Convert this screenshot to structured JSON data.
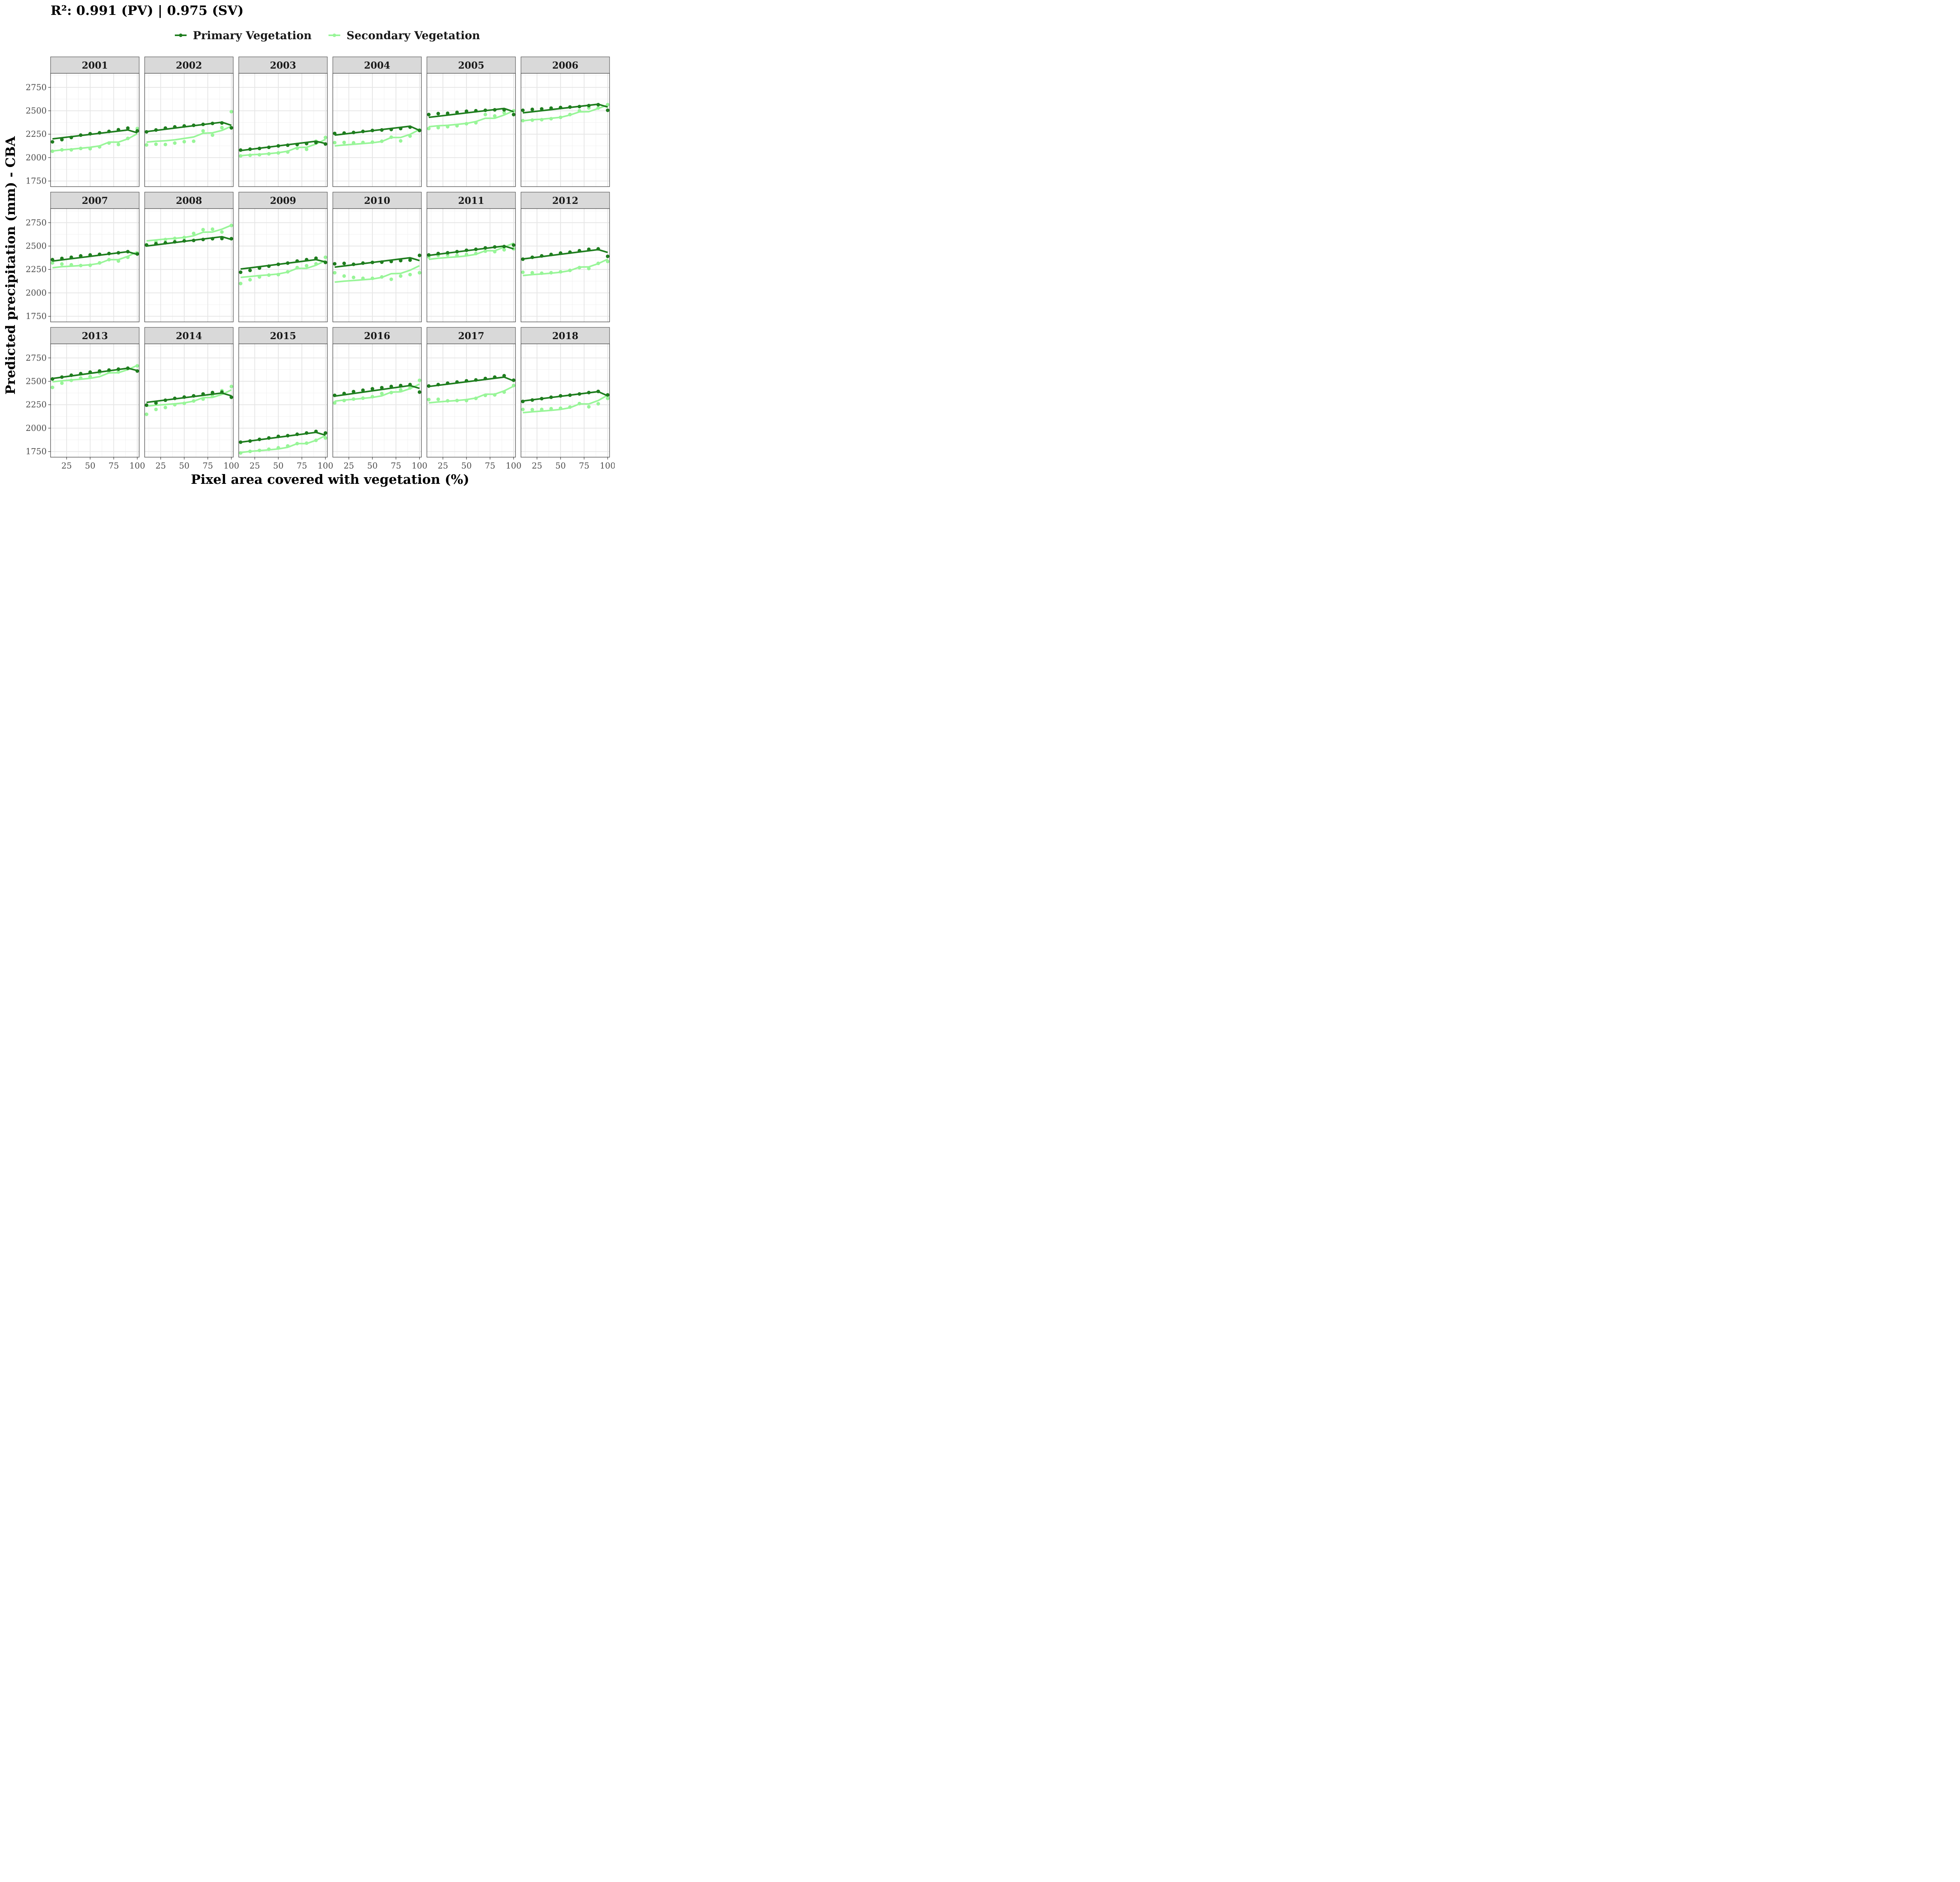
{
  "chart_data": {
    "type": "line",
    "title": "R²: 0.991 (PV) | 0.975 (SV)",
    "xlabel": "Pixel area covered with vegetation (%)",
    "ylabel": "Predicted precipitation (mm) - CBA",
    "xlim": [
      8,
      102
    ],
    "ylim": [
      1690,
      2900
    ],
    "xticks": [
      25,
      50,
      75,
      100
    ],
    "yticks": [
      1750,
      2000,
      2250,
      2500,
      2750
    ],
    "grid": true,
    "facet_layout": {
      "rows": 3,
      "cols": 6
    },
    "legend_placement": "top",
    "x": [
      10,
      20,
      30,
      40,
      50,
      60,
      70,
      80,
      90,
      100
    ],
    "series": [
      {
        "name": "Primary Vegetation",
        "key": "pv",
        "color": "#1e7d1e"
      },
      {
        "name": "Secondary Vegetation",
        "key": "sv",
        "color": "#98f598"
      }
    ],
    "panels": [
      {
        "label": "2001",
        "pv": {
          "points": [
            2168,
            2192,
            2215,
            2240,
            2255,
            2265,
            2280,
            2298,
            2315,
            2285
          ],
          "fit_start": 2200,
          "fit_peak": 2295,
          "fit_end": 2265
        },
        "sv": {
          "points": [
            2068,
            2083,
            2083,
            2098,
            2095,
            2115,
            2155,
            2140,
            2205,
            2310
          ],
          "fit": [
            2070,
            2082,
            2090,
            2100,
            2110,
            2125,
            2165,
            2165,
            2200,
            2255
          ]
        }
      },
      {
        "label": "2002",
        "pv": {
          "points": [
            2275,
            2295,
            2315,
            2328,
            2338,
            2345,
            2355,
            2365,
            2370,
            2318
          ],
          "fit_start": 2278,
          "fit_peak": 2378,
          "fit_end": 2345
        },
        "sv": {
          "points": [
            2135,
            2143,
            2140,
            2155,
            2170,
            2175,
            2285,
            2240,
            2320,
            2490
          ],
          "fit": [
            2165,
            2175,
            2180,
            2190,
            2205,
            2220,
            2260,
            2265,
            2290,
            2335
          ]
        }
      },
      {
        "label": "2003",
        "pv": {
          "points": [
            2080,
            2090,
            2098,
            2110,
            2125,
            2132,
            2140,
            2150,
            2160,
            2145
          ],
          "fit_start": 2075,
          "fit_peak": 2175,
          "fit_end": 2150
        },
        "sv": {
          "points": [
            2018,
            2025,
            2030,
            2040,
            2050,
            2060,
            2100,
            2088,
            2175,
            2215
          ],
          "fit": [
            2020,
            2030,
            2035,
            2042,
            2052,
            2068,
            2108,
            2110,
            2145,
            2195
          ]
        }
      },
      {
        "label": "2004",
        "pv": {
          "points": [
            2258,
            2262,
            2268,
            2280,
            2290,
            2295,
            2300,
            2310,
            2325,
            2290
          ],
          "fit_start": 2240,
          "fit_peak": 2335,
          "fit_end": 2290
        },
        "sv": {
          "points": [
            2160,
            2162,
            2158,
            2162,
            2165,
            2175,
            2218,
            2178,
            2230,
            2295
          ],
          "fit": [
            2125,
            2135,
            2142,
            2150,
            2158,
            2172,
            2215,
            2215,
            2248,
            2300
          ]
        }
      },
      {
        "label": "2005",
        "pv": {
          "points": [
            2460,
            2470,
            2473,
            2483,
            2495,
            2500,
            2505,
            2510,
            2510,
            2460
          ],
          "fit_start": 2430,
          "fit_peak": 2525,
          "fit_end": 2490
        },
        "sv": {
          "points": [
            2310,
            2320,
            2330,
            2340,
            2362,
            2372,
            2460,
            2445,
            2480,
            2500
          ],
          "fit": [
            2330,
            2340,
            2345,
            2355,
            2365,
            2385,
            2420,
            2420,
            2455,
            2500
          ]
        }
      },
      {
        "label": "2006",
        "pv": {
          "points": [
            2505,
            2515,
            2520,
            2528,
            2535,
            2540,
            2545,
            2555,
            2565,
            2505
          ],
          "fit_start": 2478,
          "fit_peak": 2570,
          "fit_end": 2540
        },
        "sv": {
          "points": [
            2395,
            2400,
            2405,
            2415,
            2430,
            2460,
            2500,
            2530,
            2530,
            2565
          ],
          "fit": [
            2392,
            2405,
            2410,
            2420,
            2430,
            2455,
            2488,
            2490,
            2525,
            2560
          ]
        }
      },
      {
        "label": "2007",
        "pv": {
          "points": [
            2355,
            2368,
            2380,
            2395,
            2405,
            2412,
            2420,
            2428,
            2440,
            2415
          ],
          "fit_start": 2340,
          "fit_peak": 2440,
          "fit_end": 2410
        },
        "sv": {
          "points": [
            2320,
            2308,
            2300,
            2292,
            2295,
            2320,
            2355,
            2340,
            2380,
            2425
          ],
          "fit": [
            2268,
            2280,
            2285,
            2292,
            2300,
            2315,
            2355,
            2355,
            2390,
            2440
          ]
        }
      },
      {
        "label": "2008",
        "pv": {
          "points": [
            2510,
            2525,
            2535,
            2545,
            2555,
            2560,
            2570,
            2578,
            2580,
            2578
          ],
          "fit_start": 2500,
          "fit_peak": 2600,
          "fit_end": 2570
        },
        "sv": {
          "points": [
            2515,
            2545,
            2570,
            2582,
            2592,
            2635,
            2675,
            2680,
            2650,
            2720
          ],
          "fit": [
            2555,
            2565,
            2575,
            2582,
            2592,
            2610,
            2648,
            2650,
            2680,
            2722
          ]
        }
      },
      {
        "label": "2009",
        "pv": {
          "points": [
            2220,
            2240,
            2265,
            2285,
            2305,
            2318,
            2340,
            2355,
            2370,
            2325
          ],
          "fit_start": 2255,
          "fit_peak": 2355,
          "fit_end": 2330
        },
        "sv": {
          "points": [
            2100,
            2140,
            2170,
            2190,
            2195,
            2225,
            2270,
            2290,
            2310,
            2380
          ],
          "fit": [
            2165,
            2175,
            2185,
            2192,
            2202,
            2222,
            2262,
            2262,
            2295,
            2345
          ]
        }
      },
      {
        "label": "2010",
        "pv": {
          "points": [
            2310,
            2315,
            2305,
            2318,
            2325,
            2328,
            2335,
            2345,
            2350,
            2400
          ],
          "fit_start": 2275,
          "fit_peak": 2375,
          "fit_end": 2345
        },
        "sv": {
          "points": [
            2215,
            2180,
            2165,
            2155,
            2155,
            2170,
            2145,
            2180,
            2195,
            2215
          ],
          "fit": [
            2115,
            2125,
            2132,
            2140,
            2148,
            2165,
            2205,
            2208,
            2242,
            2290
          ]
        }
      },
      {
        "label": "2011",
        "pv": {
          "points": [
            2405,
            2420,
            2428,
            2440,
            2455,
            2465,
            2480,
            2490,
            2495,
            2510
          ],
          "fit_start": 2400,
          "fit_peak": 2500,
          "fit_end": 2470
        },
        "sv": {
          "points": [
            2385,
            2400,
            2405,
            2400,
            2410,
            2420,
            2445,
            2440,
            2460,
            2470
          ],
          "fit": [
            2358,
            2370,
            2378,
            2385,
            2395,
            2412,
            2450,
            2450,
            2488,
            2532
          ]
        }
      },
      {
        "label": "2012",
        "pv": {
          "points": [
            2360,
            2380,
            2395,
            2410,
            2425,
            2435,
            2450,
            2465,
            2470,
            2390
          ],
          "fit_start": 2362,
          "fit_peak": 2462,
          "fit_end": 2432
        },
        "sv": {
          "points": [
            2220,
            2215,
            2210,
            2215,
            2225,
            2240,
            2270,
            2260,
            2315,
            2335
          ],
          "fit": [
            2185,
            2195,
            2202,
            2210,
            2220,
            2238,
            2275,
            2278,
            2312,
            2360
          ]
        }
      },
      {
        "label": "2013",
        "pv": {
          "points": [
            2525,
            2545,
            2565,
            2582,
            2598,
            2610,
            2620,
            2630,
            2640,
            2610
          ],
          "fit_start": 2530,
          "fit_peak": 2640,
          "fit_end": 2615
        },
        "sv": {
          "points": [
            2435,
            2480,
            2510,
            2535,
            2550,
            2590,
            2600,
            2600,
            2640,
            2665
          ],
          "fit": [
            2495,
            2505,
            2515,
            2522,
            2532,
            2550,
            2590,
            2592,
            2625,
            2670
          ]
        }
      },
      {
        "label": "2014",
        "pv": {
          "points": [
            2245,
            2268,
            2298,
            2318,
            2332,
            2345,
            2365,
            2380,
            2385,
            2330
          ],
          "fit_start": 2275,
          "fit_peak": 2375,
          "fit_end": 2345
        },
        "sv": {
          "points": [
            2148,
            2200,
            2220,
            2250,
            2265,
            2290,
            2310,
            2340,
            2400,
            2445
          ],
          "fit": [
            2235,
            2245,
            2252,
            2260,
            2270,
            2288,
            2325,
            2328,
            2360,
            2408
          ]
        }
      },
      {
        "label": "2015",
        "pv": {
          "points": [
            1850,
            1862,
            1880,
            1895,
            1912,
            1920,
            1935,
            1948,
            1965,
            1948
          ],
          "fit_start": 1850,
          "fit_peak": 1955,
          "fit_end": 1925
        },
        "sv": {
          "points": [
            1735,
            1752,
            1762,
            1775,
            1790,
            1810,
            1835,
            1840,
            1870,
            1895
          ],
          "fit": [
            1740,
            1752,
            1760,
            1768,
            1778,
            1795,
            1835,
            1835,
            1870,
            1920
          ]
        }
      },
      {
        "label": "2016",
        "pv": {
          "points": [
            2350,
            2370,
            2390,
            2405,
            2420,
            2432,
            2445,
            2455,
            2465,
            2385
          ],
          "fit_start": 2342,
          "fit_peak": 2455,
          "fit_end": 2425
        },
        "sv": {
          "points": [
            2270,
            2295,
            2310,
            2320,
            2335,
            2370,
            2380,
            2410,
            2430,
            2510
          ],
          "fit": [
            2288,
            2300,
            2308,
            2318,
            2328,
            2345,
            2385,
            2388,
            2422,
            2470
          ]
        }
      },
      {
        "label": "2017",
        "pv": {
          "points": [
            2450,
            2465,
            2480,
            2492,
            2505,
            2515,
            2530,
            2545,
            2560,
            2512
          ],
          "fit_start": 2445,
          "fit_peak": 2545,
          "fit_end": 2505
        },
        "sv": {
          "points": [
            2305,
            2308,
            2292,
            2295,
            2295,
            2318,
            2350,
            2355,
            2385,
            2455
          ],
          "fit": [
            2270,
            2280,
            2288,
            2295,
            2305,
            2322,
            2362,
            2362,
            2398,
            2448
          ]
        }
      },
      {
        "label": "2018",
        "pv": {
          "points": [
            2285,
            2300,
            2315,
            2330,
            2345,
            2352,
            2365,
            2380,
            2392,
            2355
          ],
          "fit_start": 2290,
          "fit_peak": 2390,
          "fit_end": 2345
        },
        "sv": {
          "points": [
            2200,
            2198,
            2200,
            2208,
            2212,
            2225,
            2262,
            2228,
            2260,
            2318
          ],
          "fit": [
            2165,
            2175,
            2182,
            2190,
            2200,
            2218,
            2258,
            2258,
            2295,
            2352
          ]
        }
      }
    ]
  }
}
